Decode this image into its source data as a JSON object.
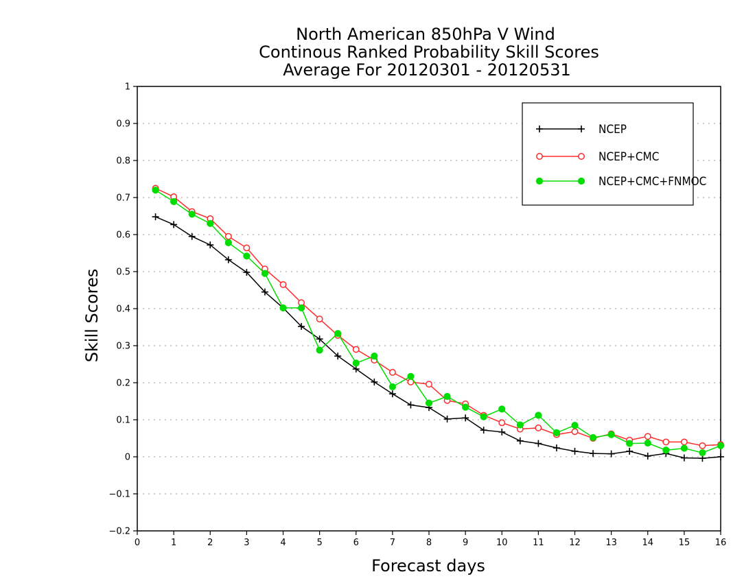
{
  "chart_data": {
    "type": "line",
    "title_lines": [
      "North American 850hPa V Wind",
      "Continous Ranked Probability Skill Scores",
      "Average For 20120301 - 20120531"
    ],
    "xlabel": "Forecast days",
    "ylabel": "Skill Scores",
    "xlim": [
      0,
      16
    ],
    "ylim": [
      -0.2,
      1
    ],
    "x_ticks": [
      0,
      1,
      2,
      3,
      4,
      5,
      6,
      7,
      8,
      9,
      10,
      11,
      12,
      13,
      14,
      15,
      16
    ],
    "x_tick_labels": [
      "0",
      "1",
      "2",
      "3",
      "4",
      "5",
      "6",
      "7",
      "8",
      "9",
      "10",
      "11",
      "12",
      "13",
      "14",
      "15",
      "16"
    ],
    "y_ticks": [
      -0.2,
      -0.1,
      0,
      0.1,
      0.2,
      0.3,
      0.4,
      0.5,
      0.6,
      0.7,
      0.8,
      0.9,
      1
    ],
    "y_tick_labels": [
      "−0.2",
      "−0.1",
      "0",
      "0.1",
      "0.2",
      "0.3",
      "0.4",
      "0.5",
      "0.6",
      "0.7",
      "0.8",
      "0.9",
      "1"
    ],
    "grid": "horizontal dotted",
    "legend_position": "top-right",
    "x": [
      0.5,
      1.0,
      1.5,
      2.0,
      2.5,
      3.0,
      3.5,
      4.0,
      4.5,
      5.0,
      5.5,
      6.0,
      6.5,
      7.0,
      7.5,
      8.0,
      8.5,
      9.0,
      9.5,
      10.0,
      10.5,
      11.0,
      11.5,
      12.0,
      12.5,
      13.0,
      13.5,
      14.0,
      14.5,
      15.0,
      15.5,
      16.0
    ],
    "series": [
      {
        "name": "NCEP",
        "color": "#000000",
        "marker": "plus",
        "values": [
          0.648,
          0.627,
          0.595,
          0.572,
          0.532,
          0.498,
          0.445,
          0.402,
          0.352,
          0.318,
          0.272,
          0.237,
          0.202,
          0.17,
          0.14,
          0.133,
          0.102,
          0.105,
          0.072,
          0.067,
          0.043,
          0.036,
          0.024,
          0.015,
          0.009,
          0.008,
          0.015,
          0.002,
          0.009,
          -0.003,
          -0.004,
          0.0
        ]
      },
      {
        "name": "NCEP+CMC",
        "color": "#ff2a2a",
        "marker": "open-circle",
        "values": [
          0.725,
          0.702,
          0.662,
          0.643,
          0.595,
          0.564,
          0.507,
          0.465,
          0.416,
          0.372,
          0.328,
          0.29,
          0.261,
          0.228,
          0.202,
          0.196,
          0.152,
          0.143,
          0.112,
          0.092,
          0.075,
          0.078,
          0.06,
          0.068,
          0.05,
          0.062,
          0.045,
          0.055,
          0.04,
          0.04,
          0.03,
          0.033
        ]
      },
      {
        "name": "NCEP+CMC+FNMOC",
        "color": "#00dd00",
        "marker": "filled-circle",
        "values": [
          0.72,
          0.689,
          0.655,
          0.63,
          0.578,
          0.542,
          0.495,
          0.402,
          0.402,
          0.288,
          0.333,
          0.253,
          0.272,
          0.189,
          0.217,
          0.145,
          0.163,
          0.134,
          0.108,
          0.129,
          0.086,
          0.112,
          0.065,
          0.085,
          0.052,
          0.06,
          0.036,
          0.037,
          0.018,
          0.023,
          0.011,
          0.03
        ]
      }
    ]
  }
}
